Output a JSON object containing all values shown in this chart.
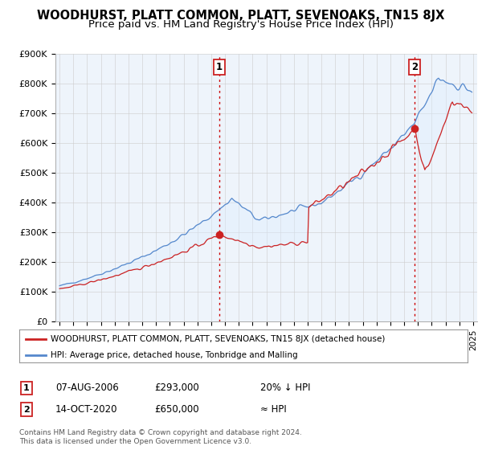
{
  "title": "WOODHURST, PLATT COMMON, PLATT, SEVENOAKS, TN15 8JX",
  "subtitle": "Price paid vs. HM Land Registry's House Price Index (HPI)",
  "ylim": [
    0,
    900000
  ],
  "yticks": [
    0,
    100000,
    200000,
    300000,
    400000,
    500000,
    600000,
    700000,
    800000,
    900000
  ],
  "ytick_labels": [
    "£0",
    "£100K",
    "£200K",
    "£300K",
    "£400K",
    "£500K",
    "£600K",
    "£700K",
    "£800K",
    "£900K"
  ],
  "hpi_color": "#5588cc",
  "price_color": "#cc2222",
  "fill_color": "#ddeeff",
  "sale1_date_num": 2006.58,
  "sale1_price": 293000,
  "sale2_date_num": 2020.78,
  "sale2_price": 650000,
  "vline_color": "#cc0000",
  "legend_line1": "WOODHURST, PLATT COMMON, PLATT, SEVENOAKS, TN15 8JX (detached house)",
  "legend_line2": "HPI: Average price, detached house, Tonbridge and Malling",
  "table_rows": [
    {
      "label": "1",
      "date": "07-AUG-2006",
      "price": "£293,000",
      "note": "20% ↓ HPI"
    },
    {
      "label": "2",
      "date": "14-OCT-2020",
      "price": "£650,000",
      "note": "≈ HPI"
    }
  ],
  "footnote1": "Contains HM Land Registry data © Crown copyright and database right 2024.",
  "footnote2": "This data is licensed under the Open Government Licence v3.0.",
  "background_color": "#ffffff",
  "grid_color": "#cccccc",
  "title_fontsize": 10.5,
  "subtitle_fontsize": 9.5
}
